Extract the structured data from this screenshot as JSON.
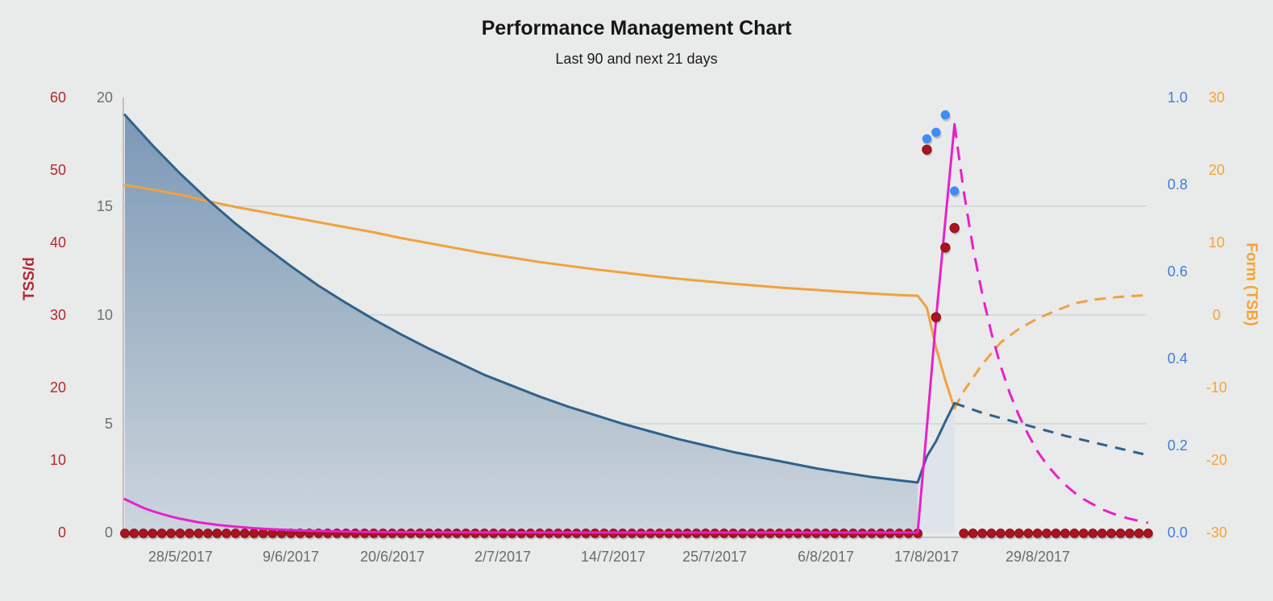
{
  "chart_data": {
    "type": "line",
    "title": "Performance Management Chart",
    "subtitle": "Last 90 and next 21 days",
    "background": "#e9eaea",
    "plot": {
      "grid_color": "#cfd0d0",
      "axis_line_color": "#b7b0ab",
      "x_axis_line_color": "#b9b9b9",
      "today_day": 90,
      "x_start_date": "22/5/2017",
      "x_end_date": "10/9/2017"
    },
    "axes": {
      "tss": {
        "title": "TSS/d",
        "position": "outer-left",
        "color": "#b3282c",
        "range": [
          0,
          60
        ],
        "tick_values": [
          0,
          10,
          20,
          30,
          40,
          50,
          60
        ],
        "tick_labels": [
          "0",
          "10",
          "20",
          "30",
          "40",
          "50",
          "60"
        ]
      },
      "ctl": {
        "title": "",
        "position": "inner-left",
        "color": "#6e6e6e",
        "range": [
          0,
          20
        ],
        "tick_values": [
          0,
          5,
          10,
          15,
          20
        ],
        "tick_labels": [
          "0",
          "5",
          "10",
          "15",
          "20"
        ]
      },
      "if": {
        "title": "",
        "position": "inner-right",
        "color": "#3e7fdd",
        "range": [
          0,
          1
        ],
        "tick_values": [
          0,
          0.2,
          0.4,
          0.6,
          0.8,
          1
        ],
        "tick_labels": [
          "0.0",
          "0.2",
          "0.4",
          "0.6",
          "0.8",
          "1.0"
        ]
      },
      "tsb": {
        "title": "Form (TSB)",
        "position": "outer-right",
        "color": "#f5a433",
        "range": [
          -30,
          30
        ],
        "tick_values": [
          -30,
          -20,
          -10,
          0,
          10,
          20,
          30
        ],
        "tick_labels": [
          "-30",
          "-20",
          "-10",
          "0",
          "10",
          "20",
          "30"
        ]
      }
    },
    "x_axis": {
      "label_color": "#6b6b6b",
      "tick_days": [
        6,
        18,
        29,
        41,
        53,
        64,
        76,
        87,
        99
      ],
      "tick_labels": [
        "28/5/2017",
        "9/6/2017",
        "20/6/2017",
        "2/7/2017",
        "14/7/2017",
        "25/7/2017",
        "6/8/2017",
        "17/8/2017",
        "29/8/2017"
      ]
    },
    "gridlines": {
      "axis": "ctl",
      "values": [
        5,
        10,
        15
      ]
    },
    "series": [
      {
        "name": "fitness-ctl",
        "axis": "ctl",
        "color": "#30628b",
        "line_width": 3,
        "area_fill": true,
        "fill_top": "#7b98b8",
        "fill_bottom": "#ccd5de",
        "forecast_fill": "#dfe3ea",
        "area_split_day": 86,
        "solid": [
          [
            0,
            19.2
          ],
          [
            3,
            17.8
          ],
          [
            6,
            16.5
          ],
          [
            9,
            15.3
          ],
          [
            12,
            14.2
          ],
          [
            15,
            13.2
          ],
          [
            18,
            12.25
          ],
          [
            21,
            11.35
          ],
          [
            24,
            10.55
          ],
          [
            27,
            9.8
          ],
          [
            30,
            9.1
          ],
          [
            33,
            8.45
          ],
          [
            36,
            7.85
          ],
          [
            39,
            7.25
          ],
          [
            42,
            6.75
          ],
          [
            45,
            6.25
          ],
          [
            48,
            5.8
          ],
          [
            51,
            5.4
          ],
          [
            54,
            5.0
          ],
          [
            57,
            4.65
          ],
          [
            60,
            4.3
          ],
          [
            63,
            4.0
          ],
          [
            66,
            3.7
          ],
          [
            69,
            3.45
          ],
          [
            72,
            3.2
          ],
          [
            75,
            2.95
          ],
          [
            78,
            2.75
          ],
          [
            81,
            2.55
          ],
          [
            84,
            2.4
          ],
          [
            86,
            2.3
          ],
          [
            87,
            3.5
          ],
          [
            88,
            4.2
          ],
          [
            89,
            5.1
          ],
          [
            90,
            5.95
          ]
        ],
        "dashed": [
          [
            90,
            5.95
          ],
          [
            93,
            5.5
          ],
          [
            96,
            5.15
          ],
          [
            99,
            4.8
          ],
          [
            102,
            4.45
          ],
          [
            105,
            4.15
          ],
          [
            108,
            3.85
          ],
          [
            111,
            3.55
          ]
        ]
      },
      {
        "name": "form-tsb",
        "axis": "tsb",
        "color": "#f0a23e",
        "line_width": 3,
        "solid": [
          [
            0,
            17.9
          ],
          [
            3,
            17.3
          ],
          [
            6,
            16.6
          ],
          [
            9,
            15.7
          ],
          [
            12,
            14.9
          ],
          [
            15,
            14.2
          ],
          [
            18,
            13.5
          ],
          [
            21,
            12.8
          ],
          [
            24,
            12.1
          ],
          [
            27,
            11.4
          ],
          [
            30,
            10.6
          ],
          [
            33,
            9.9
          ],
          [
            36,
            9.2
          ],
          [
            39,
            8.5
          ],
          [
            42,
            7.9
          ],
          [
            45,
            7.3
          ],
          [
            48,
            6.8
          ],
          [
            51,
            6.3
          ],
          [
            54,
            5.85
          ],
          [
            57,
            5.4
          ],
          [
            60,
            5.0
          ],
          [
            63,
            4.65
          ],
          [
            66,
            4.3
          ],
          [
            69,
            4.0
          ],
          [
            72,
            3.7
          ],
          [
            75,
            3.45
          ],
          [
            78,
            3.2
          ],
          [
            81,
            2.95
          ],
          [
            84,
            2.75
          ],
          [
            86,
            2.65
          ],
          [
            87,
            1.0
          ],
          [
            88,
            -4.5
          ],
          [
            89,
            -9.0
          ],
          [
            90,
            -12.9
          ]
        ],
        "dashed": [
          [
            90,
            -12.9
          ],
          [
            91,
            -10.5
          ],
          [
            93,
            -6.8
          ],
          [
            95,
            -3.8
          ],
          [
            97,
            -1.9
          ],
          [
            99,
            -0.5
          ],
          [
            101,
            0.6
          ],
          [
            103,
            1.6
          ],
          [
            105,
            2.1
          ],
          [
            107,
            2.4
          ],
          [
            109,
            2.6
          ],
          [
            111,
            2.75
          ]
        ]
      },
      {
        "name": "fatigue-atl",
        "axis": "tss",
        "color": "#e820cc",
        "line_width": 3,
        "solid": [
          [
            0,
            4.6
          ],
          [
            1,
            4.0
          ],
          [
            2,
            3.4
          ],
          [
            3,
            2.95
          ],
          [
            4,
            2.55
          ],
          [
            5,
            2.2
          ],
          [
            6,
            1.9
          ],
          [
            8,
            1.4
          ],
          [
            10,
            1.05
          ],
          [
            12,
            0.8
          ],
          [
            14,
            0.6
          ],
          [
            16,
            0.45
          ],
          [
            18,
            0.33
          ],
          [
            20,
            0.25
          ],
          [
            23,
            0.15
          ],
          [
            26,
            0.09
          ],
          [
            30,
            0.05
          ],
          [
            35,
            0.02
          ],
          [
            40,
            0.01
          ],
          [
            50,
            0
          ],
          [
            60,
            0
          ],
          [
            70,
            0
          ],
          [
            80,
            0
          ],
          [
            86,
            0
          ],
          [
            87,
            14.5
          ],
          [
            88,
            29.5
          ],
          [
            89,
            43.0
          ],
          [
            90,
            56.3
          ]
        ],
        "dashed": [
          [
            90,
            56.3
          ],
          [
            91,
            47.0
          ],
          [
            92,
            39.3
          ],
          [
            93,
            32.9
          ],
          [
            94,
            27.5
          ],
          [
            95,
            23.0
          ],
          [
            96,
            19.2
          ],
          [
            97,
            16.1
          ],
          [
            98,
            13.5
          ],
          [
            99,
            11.2
          ],
          [
            100,
            9.4
          ],
          [
            101,
            7.9
          ],
          [
            102,
            6.6
          ],
          [
            103,
            5.5
          ],
          [
            104,
            4.6
          ],
          [
            105,
            3.9
          ],
          [
            106,
            3.2
          ],
          [
            107,
            2.7
          ],
          [
            108,
            2.25
          ],
          [
            109,
            1.9
          ],
          [
            110,
            1.6
          ],
          [
            111,
            1.35
          ]
        ]
      }
    ],
    "dots": {
      "daily_tss": {
        "axis": "tss",
        "color": "#a81420",
        "edge_color": "#8c0d1b",
        "radius": 5.4,
        "zero_runs": [
          [
            0,
            86
          ],
          [
            91,
            111
          ]
        ],
        "points": [
          [
            87,
            52.8
          ],
          [
            88,
            29.7
          ],
          [
            89,
            39.3
          ],
          [
            90,
            42.0
          ]
        ]
      },
      "intensity_factor": {
        "axis": "if",
        "color": "#3f8df2",
        "radius": 5.7,
        "points": [
          [
            87,
            0.905
          ],
          [
            88,
            0.92
          ],
          [
            89,
            0.96
          ],
          [
            90,
            0.785
          ]
        ]
      }
    }
  }
}
